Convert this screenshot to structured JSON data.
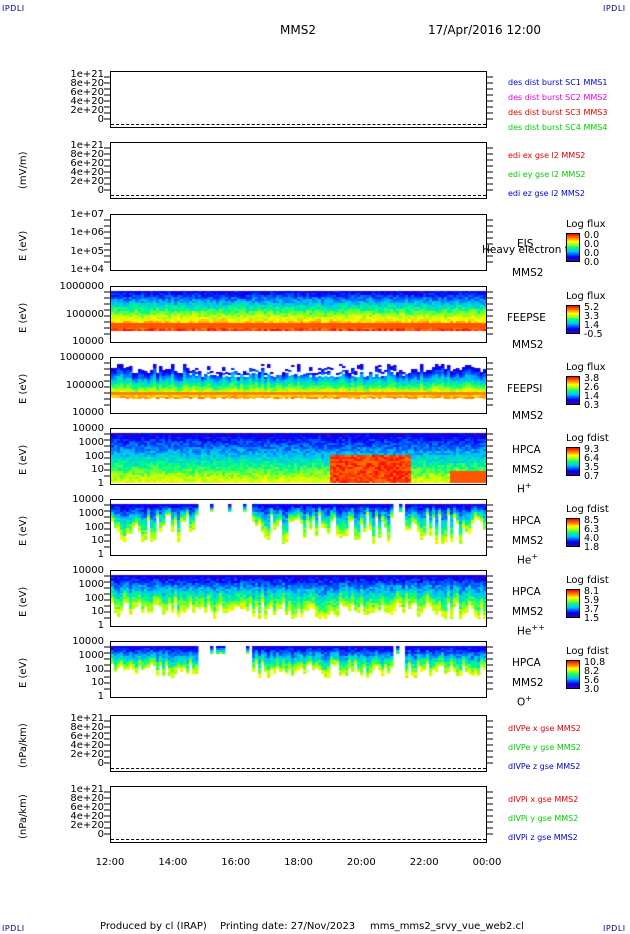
{
  "corner_label": "IPDLI",
  "header": {
    "spacecraft": "MMS2",
    "date_time": "17/Apr/2016 12:00"
  },
  "footer": {
    "produced_by": "Produced by cl (IRAP)",
    "printing_date": "Printing date: 27/Nov/2023",
    "script": "mms_mms2_srvy_vue_web2.cl"
  },
  "colors": {
    "red": "#dd0000",
    "magenta": "#dd00dd",
    "green": "#00cc00",
    "blue": "#0000cc"
  },
  "chart_data": [
    {
      "type": "line",
      "panel": "des-dist-burst",
      "ylabel": "",
      "yticks": [
        "1e+21",
        "8e+20",
        "6e+20",
        "4e+20",
        "2e+20",
        "0"
      ],
      "series": [
        {
          "name": "des dist burst SC1 MMS1",
          "color": "#0000cc"
        },
        {
          "name": "des dist burst SC2 MMS2",
          "color": "#dd00dd"
        },
        {
          "name": "des dist burst SC3 MMS3",
          "color": "#dd0000"
        },
        {
          "name": "des dist burst SC4 MMS4",
          "color": "#00cc00"
        }
      ]
    },
    {
      "type": "line",
      "panel": "edi",
      "ylabel": "(mV/m)",
      "yticks": [
        "1e+21",
        "8e+20",
        "6e+20",
        "4e+20",
        "2e+20",
        "0"
      ],
      "series": [
        {
          "name": "edi ex gse l2 MMS2",
          "color": "#dd0000"
        },
        {
          "name": "edi ey gse l2 MMS2",
          "color": "#00cc00"
        },
        {
          "name": "edi ez gse l2 MMS2",
          "color": "#0000cc"
        }
      ]
    },
    {
      "type": "heatmap",
      "panel": "eis",
      "ylabel": "E (eV)",
      "yticks": [
        "1e+07",
        "1e+06",
        "1e+05",
        "1e+04"
      ],
      "side_labels": [
        "EIS",
        "MMS2"
      ],
      "overlay_text": "Heavy electron to",
      "cbar": {
        "title": "Log flux",
        "values": [
          "0.0",
          "0.0",
          "0.0",
          "0.0"
        ]
      }
    },
    {
      "type": "heatmap",
      "panel": "feepse",
      "ylabel": "E (eV)",
      "yticks": [
        "1000000",
        "100000",
        "10000"
      ],
      "side_labels": [
        "FEEPSE",
        "MMS2"
      ],
      "cbar": {
        "title": "Log flux",
        "values": [
          "5.2",
          "3.3",
          "1.4",
          "-0.5"
        ]
      }
    },
    {
      "type": "heatmap",
      "panel": "feepsi",
      "ylabel": "E (eV)",
      "yticks": [
        "1000000",
        "100000",
        "10000"
      ],
      "side_labels": [
        "FEEPSI",
        "MMS2"
      ],
      "cbar": {
        "title": "Log flux",
        "values": [
          "3.8",
          "2.6",
          "1.4",
          "0.3"
        ]
      }
    },
    {
      "type": "heatmap",
      "panel": "hpca-h",
      "ylabel": "E (eV)",
      "yticks": [
        "10000",
        "1000",
        "100",
        "10",
        "1"
      ],
      "side_labels": [
        "HPCA",
        "MMS2"
      ],
      "species": "H",
      "charge": "+",
      "cbar": {
        "title": "Log fdist",
        "values": [
          "9.3",
          "6.4",
          "3.5",
          "0.7"
        ]
      }
    },
    {
      "type": "heatmap",
      "panel": "hpca-he",
      "ylabel": "E (eV)",
      "yticks": [
        "10000",
        "1000",
        "100",
        "10",
        "1"
      ],
      "side_labels": [
        "HPCA",
        "MMS2"
      ],
      "species": "He",
      "charge": "+",
      "cbar": {
        "title": "Log fdist",
        "values": [
          "8.5",
          "6.3",
          "4.0",
          "1.8"
        ]
      }
    },
    {
      "type": "heatmap",
      "panel": "hpca-he2",
      "ylabel": "E (eV)",
      "yticks": [
        "10000",
        "1000",
        "100",
        "10",
        "1"
      ],
      "side_labels": [
        "HPCA",
        "MMS2"
      ],
      "species": "He",
      "charge": "++",
      "cbar": {
        "title": "Log fdist",
        "values": [
          "8.1",
          "5.9",
          "3.7",
          "1.5"
        ]
      }
    },
    {
      "type": "heatmap",
      "panel": "hpca-o",
      "ylabel": "E (eV)",
      "yticks": [
        "10000",
        "1000",
        "100",
        "10",
        "1"
      ],
      "side_labels": [
        "HPCA",
        "MMS2"
      ],
      "species": "O",
      "charge": "+",
      "cbar": {
        "title": "Log fdist",
        "values": [
          "10.8",
          "8.2",
          "5.6",
          "3.0"
        ]
      }
    },
    {
      "type": "line",
      "panel": "divpe",
      "ylabel": "(nPa/km)",
      "yticks": [
        "1e+21",
        "8e+20",
        "6e+20",
        "4e+20",
        "2e+20",
        "0"
      ],
      "series": [
        {
          "name": "dIVPe x gse MMS2",
          "color": "#dd0000"
        },
        {
          "name": "dIVPe y gse MMS2",
          "color": "#00cc00"
        },
        {
          "name": "dIVPe z gse MMS2",
          "color": "#0000cc"
        }
      ]
    },
    {
      "type": "line",
      "panel": "divpi",
      "ylabel": "(nPa/km)",
      "yticks": [
        "1e+21",
        "8e+20",
        "6e+20",
        "4e+20",
        "2e+20",
        "0"
      ],
      "series": [
        {
          "name": "dIVPi x gse MMS2",
          "color": "#dd0000"
        },
        {
          "name": "dIVPi y gse MMS2",
          "color": "#00cc00"
        },
        {
          "name": "dIVPi z gse MMS2",
          "color": "#0000cc"
        }
      ]
    }
  ],
  "xaxis": {
    "ticks": [
      "12:00",
      "14:00",
      "16:00",
      "18:00",
      "20:00",
      "22:00",
      "00:00"
    ]
  }
}
